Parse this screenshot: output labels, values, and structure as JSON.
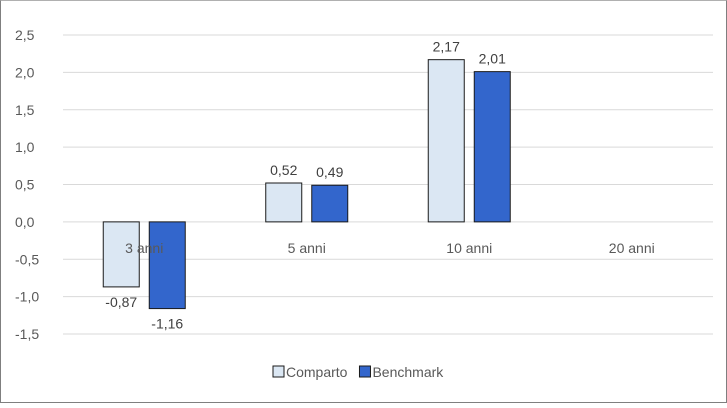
{
  "chart_data": {
    "type": "bar",
    "categories": [
      "3 anni",
      "5 anni",
      "10 anni",
      "20 anni"
    ],
    "series": [
      {
        "name": "Comparto",
        "values": [
          -0.87,
          0.52,
          2.17,
          null
        ],
        "labels": [
          "-0,87",
          "0,52",
          "2,17",
          ""
        ],
        "color": "#dbe7f3"
      },
      {
        "name": "Benchmark",
        "values": [
          -1.16,
          0.49,
          2.01,
          null
        ],
        "labels": [
          "-1,16",
          "0,49",
          "2,01",
          ""
        ],
        "color": "#3366cc"
      }
    ],
    "y_ticks": [
      "2,5",
      "2,0",
      "1,5",
      "1,0",
      "0,5",
      "0,0",
      "-0,5",
      "-1,0",
      "-1,5"
    ],
    "ylim": [
      -1.5,
      2.5
    ],
    "grid": true,
    "legend": "bottom"
  }
}
